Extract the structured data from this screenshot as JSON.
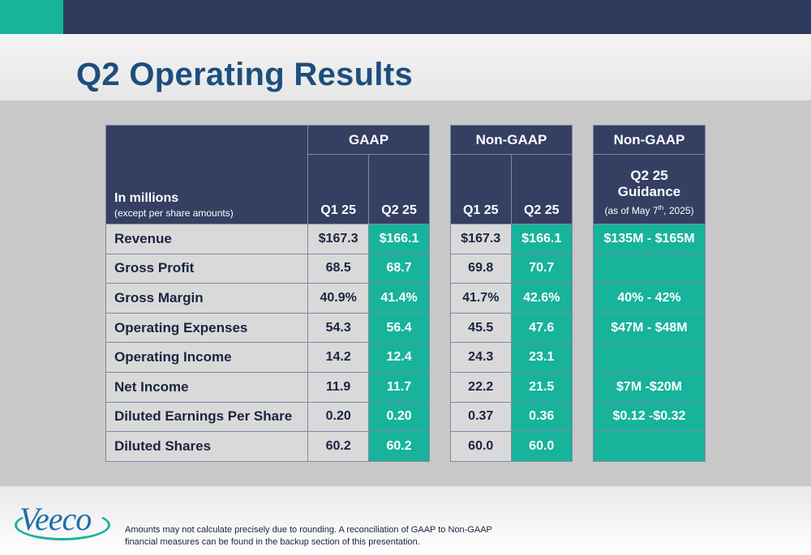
{
  "slide": {
    "title": "Q2 Operating Results",
    "brand_colors": {
      "navy": "#2e3a5c",
      "teal": "#17b39a",
      "title_blue": "#1d4e7e"
    }
  },
  "table_header": {
    "desc_main": "In millions",
    "desc_sub": "(except per share amounts)",
    "gaap_group": "GAAP",
    "nongaap_group": "Non-GAAP",
    "guidance_group": "Non-GAAP",
    "col_q1": "Q1 25",
    "col_q2": "Q2 25",
    "guidance_line1": "Q2 25",
    "guidance_line2": "Guidance",
    "guidance_sub_prefix": "(as of May 7",
    "guidance_sub_sup": "th",
    "guidance_sub_suffix": ", 2025)"
  },
  "rows": [
    {
      "label": "Revenue",
      "gaap_q1": "$167.3",
      "gaap_q2": "$166.1",
      "nongaap_q1": "$167.3",
      "nongaap_q2": "$166.1",
      "guidance": "$135M - $165M"
    },
    {
      "label": "Gross Profit",
      "gaap_q1": "68.5",
      "gaap_q2": "68.7",
      "nongaap_q1": "69.8",
      "nongaap_q2": "70.7",
      "guidance": ""
    },
    {
      "label": "Gross Margin",
      "gaap_q1": "40.9%",
      "gaap_q2": "41.4%",
      "nongaap_q1": "41.7%",
      "nongaap_q2": "42.6%",
      "guidance": "40% - 42%"
    },
    {
      "label": "Operating Expenses",
      "gaap_q1": "54.3",
      "gaap_q2": "56.4",
      "nongaap_q1": "45.5",
      "nongaap_q2": "47.6",
      "guidance": "$47M - $48M"
    },
    {
      "label": "Operating Income",
      "gaap_q1": "14.2",
      "gaap_q2": "12.4",
      "nongaap_q1": "24.3",
      "nongaap_q2": "23.1",
      "guidance": ""
    },
    {
      "label": "Net Income",
      "gaap_q1": "11.9",
      "gaap_q2": "11.7",
      "nongaap_q1": "22.2",
      "nongaap_q2": "21.5",
      "guidance": "$7M -$20M"
    },
    {
      "label": "Diluted Earnings Per Share",
      "gaap_q1": "0.20",
      "gaap_q2": "0.20",
      "nongaap_q1": "0.37",
      "nongaap_q2": "0.36",
      "guidance": "$0.12 -$0.32"
    },
    {
      "label": "Diluted Shares",
      "gaap_q1": "60.2",
      "gaap_q2": "60.2",
      "nongaap_q1": "60.0",
      "nongaap_q2": "60.0",
      "guidance": ""
    }
  ],
  "footer": {
    "logo_text": "Veeco",
    "note": "Amounts may not calculate precisely due to rounding.  A reconciliation of GAAP to Non-GAAP financial measures can be found in the backup section of this presentation."
  }
}
